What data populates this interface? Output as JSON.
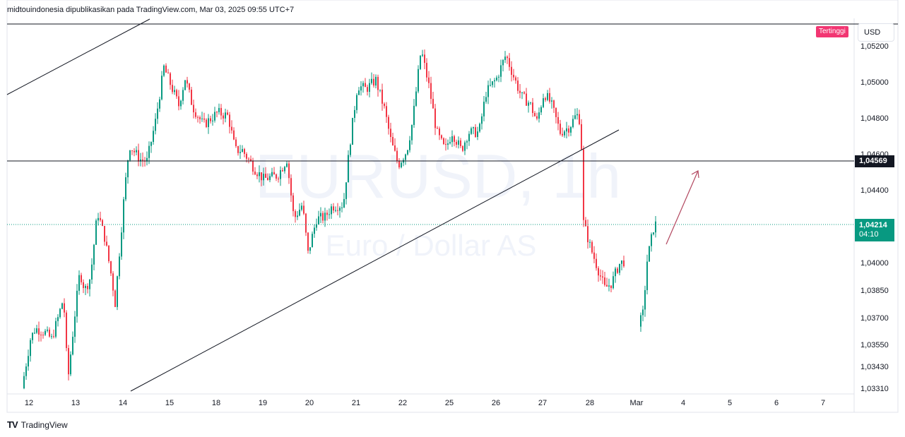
{
  "header": {
    "text": "midtouindonesia dipublikasikan pada TradingView.com, Mar 03, 2025 09:55 UTC+7"
  },
  "watermark": {
    "symbol": "EURUSD, 1h",
    "description": "Euro / Dollar AS"
  },
  "price_axis": {
    "currency": "USD",
    "high_badge": "Tertinggi"
  },
  "level_price": "1,04569",
  "last_price": {
    "value": "1,04214",
    "countdown": "04:10"
  },
  "footer": {
    "brand": "TradingView"
  },
  "colors": {
    "up": "#089981",
    "down": "#f23645",
    "line": "#131722",
    "arrow": "#b2475f"
  },
  "chart_data": {
    "type": "candlestick",
    "symbol": "EURUSD",
    "interval": "1h",
    "y_ticks": [
      1.0331,
      1.0343,
      1.0355,
      1.037,
      1.0385,
      1.04,
      1.044,
      1.046,
      1.048,
      1.05,
      1.052
    ],
    "y_tick_labels": [
      "1,03310",
      "1,03430",
      "1,03550",
      "1,03700",
      "1,03850",
      "1,04000",
      "1,04400",
      "1,04600",
      "1,04800",
      "1,05000",
      "1,05200"
    ],
    "x_tick_labels": [
      "12",
      "13",
      "14",
      "15",
      "18",
      "19",
      "20",
      "21",
      "22",
      "25",
      "26",
      "27",
      "28",
      "Mar",
      "4",
      "5",
      "6",
      "7"
    ],
    "path_points": [
      [
        1.0331,
        1.0338,
        1.0364,
        1.0364,
        1.0357,
        1.0365,
        1.0381,
        1.0342,
        1.0331,
        1.0372,
        1.0385,
        1.038,
        1.0392,
        1.0384,
        1.0414,
        1.0437,
        1.0424,
        1.0435,
        1.0433,
        1.0413,
        1.0392,
        1.0375,
        1.0438,
        1.0465,
        1.0466,
        1.0458,
        1.0457,
        1.0456
      ]
    ],
    "daily_close_approx": {
      "12": 1.0358,
      "13": 1.0395,
      "14": 1.0466,
      "15": 1.0495,
      "18": 1.048,
      "19": 1.0452,
      "20": 1.0425,
      "21": 1.0495,
      "22": 1.0462,
      "25": 1.0475,
      "26": 1.05,
      "27": 1.0488,
      "28": 1.0386,
      "Mar": 1.0421
    },
    "horizontal_level": 1.04569,
    "last_price": 1.04214,
    "high_label": "Tertinggi",
    "trendlines": [
      {
        "from": [
          "11",
          1.0492
        ],
        "to": [
          "14",
          1.0534
        ]
      },
      {
        "from": [
          "14",
          1.0331
        ],
        "to": [
          "27",
          1.0474
        ]
      }
    ],
    "projection_arrow": {
      "from": [
        "Mar",
        1.0405
      ],
      "to": [
        "4",
        1.0452
      ]
    },
    "grid": false,
    "legend": "none"
  }
}
